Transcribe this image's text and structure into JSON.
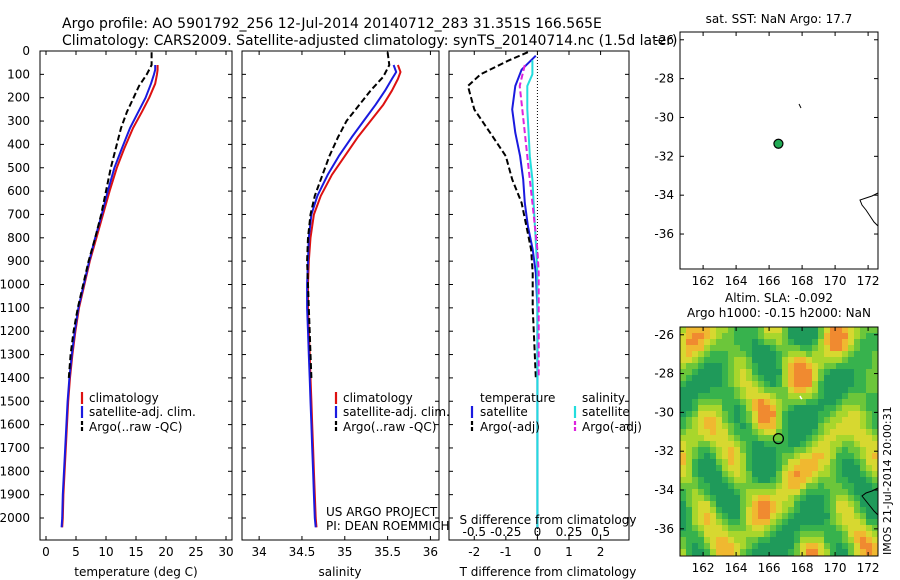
{
  "title_line1": "Argo profile: AO 5901792_256 12-Jul-2014 20140712_283 31.351S 166.565E",
  "title_line2": "Climatology: CARS2009. Satellite-adjusted climatology: synTS_20140714.nc (1.5d later)",
  "colors": {
    "climatology": "#dd1111",
    "satellite": "#1a1adf",
    "argo": "#000000",
    "sal_satellite": "#22dddd",
    "sal_argo": "#dd22dd",
    "marker": "#22aa55"
  },
  "depth_ticks": [
    0,
    100,
    200,
    300,
    400,
    500,
    600,
    700,
    800,
    900,
    1000,
    1100,
    1200,
    1300,
    1400,
    1500,
    1600,
    1700,
    1800,
    1900,
    2000
  ],
  "legend1": [
    "climatology",
    "satellite-adj. clim.",
    "Argo(..raw -QC)"
  ],
  "legend3": {
    "temp_head": "temperature",
    "sal_head": "salinity",
    "satellite": "satellite",
    "argo": "Argo(-adj)"
  },
  "credits": [
    "US ARGO PROJECT",
    "PI: DEAN ROEMMICH"
  ],
  "map1": {
    "title": "sat. SST: NaN Argo: 17.7",
    "xticks": [
      162,
      164,
      166,
      168,
      170,
      172
    ],
    "yticks": [
      -26,
      -28,
      -30,
      -32,
      -34,
      -36
    ],
    "float_lon": 166.565,
    "float_lat": -31.351
  },
  "map2": {
    "title1": "Altim. SLA: -0.092",
    "title2": "Argo h1000: -0.15 h2000: NaN",
    "xticks": [
      162,
      164,
      166,
      168,
      170,
      172
    ],
    "yticks": [
      -26,
      -28,
      -30,
      -32,
      -34,
      -36
    ],
    "stamp": "IMOS 21-Jul-2014 20:00:31"
  },
  "chart_data": [
    {
      "type": "line",
      "xlabel": "temperature (deg C)",
      "ylabel": "",
      "xlim": [
        -1,
        31
      ],
      "ylim": [
        2050,
        0
      ],
      "xticks": [
        0,
        5,
        10,
        15,
        20,
        25,
        30
      ],
      "x_field": "value",
      "y_field": "depth",
      "series": [
        {
          "name": "climatology",
          "points": [
            [
              18.6,
              60
            ],
            [
              18.6,
              80
            ],
            [
              18.5,
              100
            ],
            [
              18.2,
              140
            ],
            [
              17.2,
              200
            ],
            [
              16,
              260
            ],
            [
              14.5,
              330
            ],
            [
              13,
              420
            ],
            [
              11.8,
              500
            ],
            [
              10.6,
              600
            ],
            [
              9.5,
              700
            ],
            [
              8.4,
              800
            ],
            [
              7.3,
              900
            ],
            [
              6.4,
              1000
            ],
            [
              5.5,
              1100
            ],
            [
              4.9,
              1200
            ],
            [
              4.4,
              1300
            ],
            [
              4.0,
              1400
            ],
            [
              3.7,
              1500
            ],
            [
              3.5,
              1600
            ],
            [
              3.3,
              1700
            ],
            [
              3.1,
              1800
            ],
            [
              2.9,
              1900
            ],
            [
              2.8,
              2000
            ],
            [
              2.7,
              2040
            ]
          ]
        },
        {
          "name": "satellite-adj. clim.",
          "points": [
            [
              18.2,
              60
            ],
            [
              18.2,
              80
            ],
            [
              18.0,
              100
            ],
            [
              17.5,
              140
            ],
            [
              16.6,
              200
            ],
            [
              15.4,
              260
            ],
            [
              14.0,
              330
            ],
            [
              12.6,
              420
            ],
            [
              11.4,
              500
            ],
            [
              10.3,
              600
            ],
            [
              9.3,
              700
            ],
            [
              8.2,
              800
            ],
            [
              7.2,
              900
            ],
            [
              6.3,
              1000
            ],
            [
              5.4,
              1100
            ],
            [
              4.8,
              1200
            ],
            [
              4.3,
              1300
            ],
            [
              3.9,
              1400
            ],
            [
              3.6,
              1500
            ],
            [
              3.4,
              1600
            ],
            [
              3.2,
              1700
            ],
            [
              3.0,
              1800
            ],
            [
              2.8,
              1900
            ],
            [
              2.7,
              2000
            ],
            [
              2.6,
              2040
            ]
          ]
        },
        {
          "name": "Argo(..raw -QC)",
          "points": [
            [
              17.6,
              5
            ],
            [
              17.6,
              60
            ],
            [
              16.8,
              100
            ],
            [
              15.5,
              150
            ],
            [
              14.6,
              200
            ],
            [
              13.5,
              260
            ],
            [
              12.5,
              330
            ],
            [
              11.6,
              420
            ],
            [
              10.8,
              500
            ],
            [
              10.0,
              600
            ],
            [
              9.2,
              700
            ],
            [
              8.2,
              800
            ],
            [
              7.1,
              900
            ],
            [
              6.2,
              1000
            ],
            [
              5.3,
              1100
            ],
            [
              4.6,
              1200
            ],
            [
              4.1,
              1300
            ],
            [
              3.8,
              1400
            ]
          ]
        }
      ]
    },
    {
      "type": "line",
      "xlabel": "salinity",
      "ylabel": "",
      "xlim": [
        33.8,
        36.1
      ],
      "ylim": [
        2050,
        0
      ],
      "xticks": [
        34,
        34.5,
        35,
        35.5,
        36
      ],
      "x_field": "value",
      "y_field": "depth",
      "series": [
        {
          "name": "climatology",
          "points": [
            [
              35.62,
              60
            ],
            [
              35.65,
              90
            ],
            [
              35.62,
              120
            ],
            [
              35.55,
              170
            ],
            [
              35.45,
              230
            ],
            [
              35.3,
              300
            ],
            [
              35.15,
              370
            ],
            [
              35.0,
              450
            ],
            [
              34.85,
              530
            ],
            [
              34.72,
              620
            ],
            [
              34.64,
              700
            ],
            [
              34.6,
              800
            ],
            [
              34.58,
              900
            ],
            [
              34.57,
              1000
            ],
            [
              34.57,
              1100
            ],
            [
              34.58,
              1200
            ],
            [
              34.59,
              1300
            ],
            [
              34.6,
              1400
            ],
            [
              34.61,
              1500
            ],
            [
              34.62,
              1600
            ],
            [
              34.63,
              1700
            ],
            [
              34.64,
              1800
            ],
            [
              34.65,
              1900
            ],
            [
              34.66,
              2000
            ],
            [
              34.67,
              2040
            ]
          ]
        },
        {
          "name": "satellite-adj. clim.",
          "points": [
            [
              35.57,
              60
            ],
            [
              35.6,
              90
            ],
            [
              35.55,
              120
            ],
            [
              35.47,
              170
            ],
            [
              35.36,
              230
            ],
            [
              35.22,
              300
            ],
            [
              35.08,
              370
            ],
            [
              34.93,
              450
            ],
            [
              34.8,
              530
            ],
            [
              34.68,
              620
            ],
            [
              34.61,
              700
            ],
            [
              34.58,
              800
            ],
            [
              34.57,
              900
            ],
            [
              34.56,
              1000
            ],
            [
              34.56,
              1100
            ],
            [
              34.57,
              1200
            ],
            [
              34.58,
              1300
            ],
            [
              34.59,
              1400
            ],
            [
              34.6,
              1500
            ],
            [
              34.61,
              1600
            ],
            [
              34.62,
              1700
            ],
            [
              34.63,
              1800
            ],
            [
              34.64,
              1900
            ],
            [
              34.65,
              2000
            ],
            [
              34.66,
              2040
            ]
          ]
        },
        {
          "name": "Argo(..raw -QC)",
          "points": [
            [
              35.5,
              5
            ],
            [
              35.52,
              60
            ],
            [
              35.45,
              110
            ],
            [
              35.3,
              170
            ],
            [
              35.15,
              240
            ],
            [
              35.02,
              300
            ],
            [
              34.92,
              370
            ],
            [
              34.82,
              450
            ],
            [
              34.74,
              530
            ],
            [
              34.65,
              620
            ],
            [
              34.6,
              700
            ],
            [
              34.57,
              800
            ],
            [
              34.56,
              900
            ],
            [
              34.57,
              1000
            ],
            [
              34.58,
              1100
            ],
            [
              34.59,
              1200
            ],
            [
              34.6,
              1300
            ],
            [
              34.61,
              1400
            ]
          ]
        }
      ]
    },
    {
      "type": "line",
      "xlabel": "T difference from climatology",
      "x2label": "S difference from climatology",
      "ylabel": "",
      "xlim": [
        -2.8,
        2.9
      ],
      "ylim": [
        2050,
        0
      ],
      "xticks": [
        -2,
        -1,
        0,
        1,
        2
      ],
      "x2ticks": [
        -0.5,
        -0.25,
        0,
        0.25,
        0.5
      ],
      "x_field": "value",
      "y_field": "depth",
      "series": [
        {
          "name": "satellite (temperature)",
          "points": [
            [
              -0.05,
              20
            ],
            [
              -0.5,
              80
            ],
            [
              -0.7,
              150
            ],
            [
              -0.8,
              250
            ],
            [
              -0.7,
              350
            ],
            [
              -0.55,
              450
            ],
            [
              -0.45,
              550
            ],
            [
              -0.4,
              650
            ],
            [
              -0.3,
              750
            ],
            [
              -0.15,
              850
            ],
            [
              -0.05,
              950
            ],
            [
              0,
              1100
            ],
            [
              0,
              2040
            ]
          ]
        },
        {
          "name": "Argo(-adj) (temperature)",
          "points": [
            [
              -0.3,
              5
            ],
            [
              -0.9,
              40
            ],
            [
              -1.8,
              100
            ],
            [
              -2.2,
              150
            ],
            [
              -2.0,
              250
            ],
            [
              -1.5,
              350
            ],
            [
              -1.0,
              450
            ],
            [
              -0.8,
              550
            ],
            [
              -0.5,
              650
            ],
            [
              -0.35,
              750
            ],
            [
              -0.2,
              850
            ],
            [
              -0.15,
              950
            ],
            [
              -0.15,
              1100
            ],
            [
              -0.1,
              1250
            ],
            [
              -0.05,
              1400
            ]
          ]
        },
        {
          "name": "satellite (salinity)",
          "points": [
            [
              -0.04,
              40
            ],
            [
              -0.04,
              100
            ],
            [
              -0.08,
              150
            ],
            [
              -0.08,
              250
            ],
            [
              -0.07,
              350
            ],
            [
              -0.06,
              450
            ],
            [
              -0.04,
              550
            ],
            [
              -0.03,
              650
            ],
            [
              -0.02,
              750
            ],
            [
              -0.01,
              850
            ],
            [
              0,
              950
            ],
            [
              0,
              2040
            ]
          ]
        },
        {
          "name": "Argo(-adj) (salinity)",
          "points": [
            [
              -0.1,
              60
            ],
            [
              -0.14,
              150
            ],
            [
              -0.12,
              250
            ],
            [
              -0.1,
              350
            ],
            [
              -0.08,
              450
            ],
            [
              -0.06,
              550
            ],
            [
              -0.04,
              650
            ],
            [
              -0.02,
              750
            ],
            [
              0,
              850
            ],
            [
              0.01,
              950
            ],
            [
              0.01,
              1100
            ],
            [
              0.01,
              1250
            ],
            [
              0.01,
              1400
            ]
          ]
        }
      ]
    }
  ]
}
